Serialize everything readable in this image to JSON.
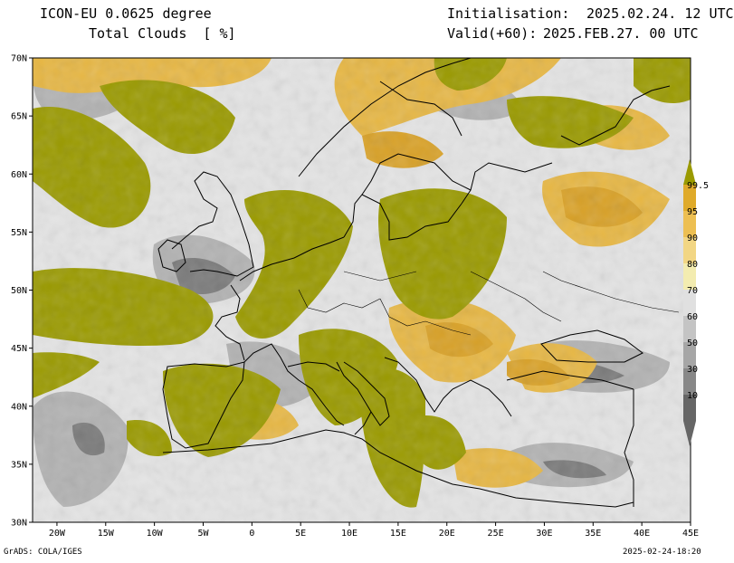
{
  "header": {
    "model": "ICON-EU 0.0625 degree",
    "field": "Total Clouds  [ %]",
    "init_label": "Initialisation:",
    "init_value": "2025.02.24. 12 UTC",
    "valid_label": "Valid(+60):",
    "valid_value": "2025.FEB.27. 00 UTC"
  },
  "axes": {
    "lat_labels": [
      "70N",
      "65N",
      "60N",
      "55N",
      "50N",
      "45N",
      "40N",
      "35N",
      "30N"
    ],
    "lon_labels": [
      "20W",
      "15W",
      "10W",
      "5W",
      "0",
      "5E",
      "10E",
      "15E",
      "20E",
      "25E",
      "30E",
      "35E",
      "40E",
      "45E"
    ],
    "lat_range": [
      30,
      70
    ],
    "lon_range": [
      -22.5,
      45
    ]
  },
  "colorbar": {
    "labels": [
      "99.5",
      "95",
      "90",
      "80",
      "70",
      "60",
      "50",
      "30",
      "10"
    ],
    "colors": [
      "#9a9a00",
      "#dfaa2a",
      "#edbf52",
      "#f2d684",
      "#f3ecb0",
      "#e0e0e0",
      "#c4c4c4",
      "#a6a6a6",
      "#888888",
      "#666666"
    ]
  },
  "palette": {
    "land_clear": "#e4e4e4",
    "sea_clear": "#e4e4e4",
    "olive": "#9a9a00",
    "coast": "#000000"
  },
  "footer": {
    "left": "GrADS: COLA/IGES",
    "right": "2025-02-24-18:20"
  }
}
